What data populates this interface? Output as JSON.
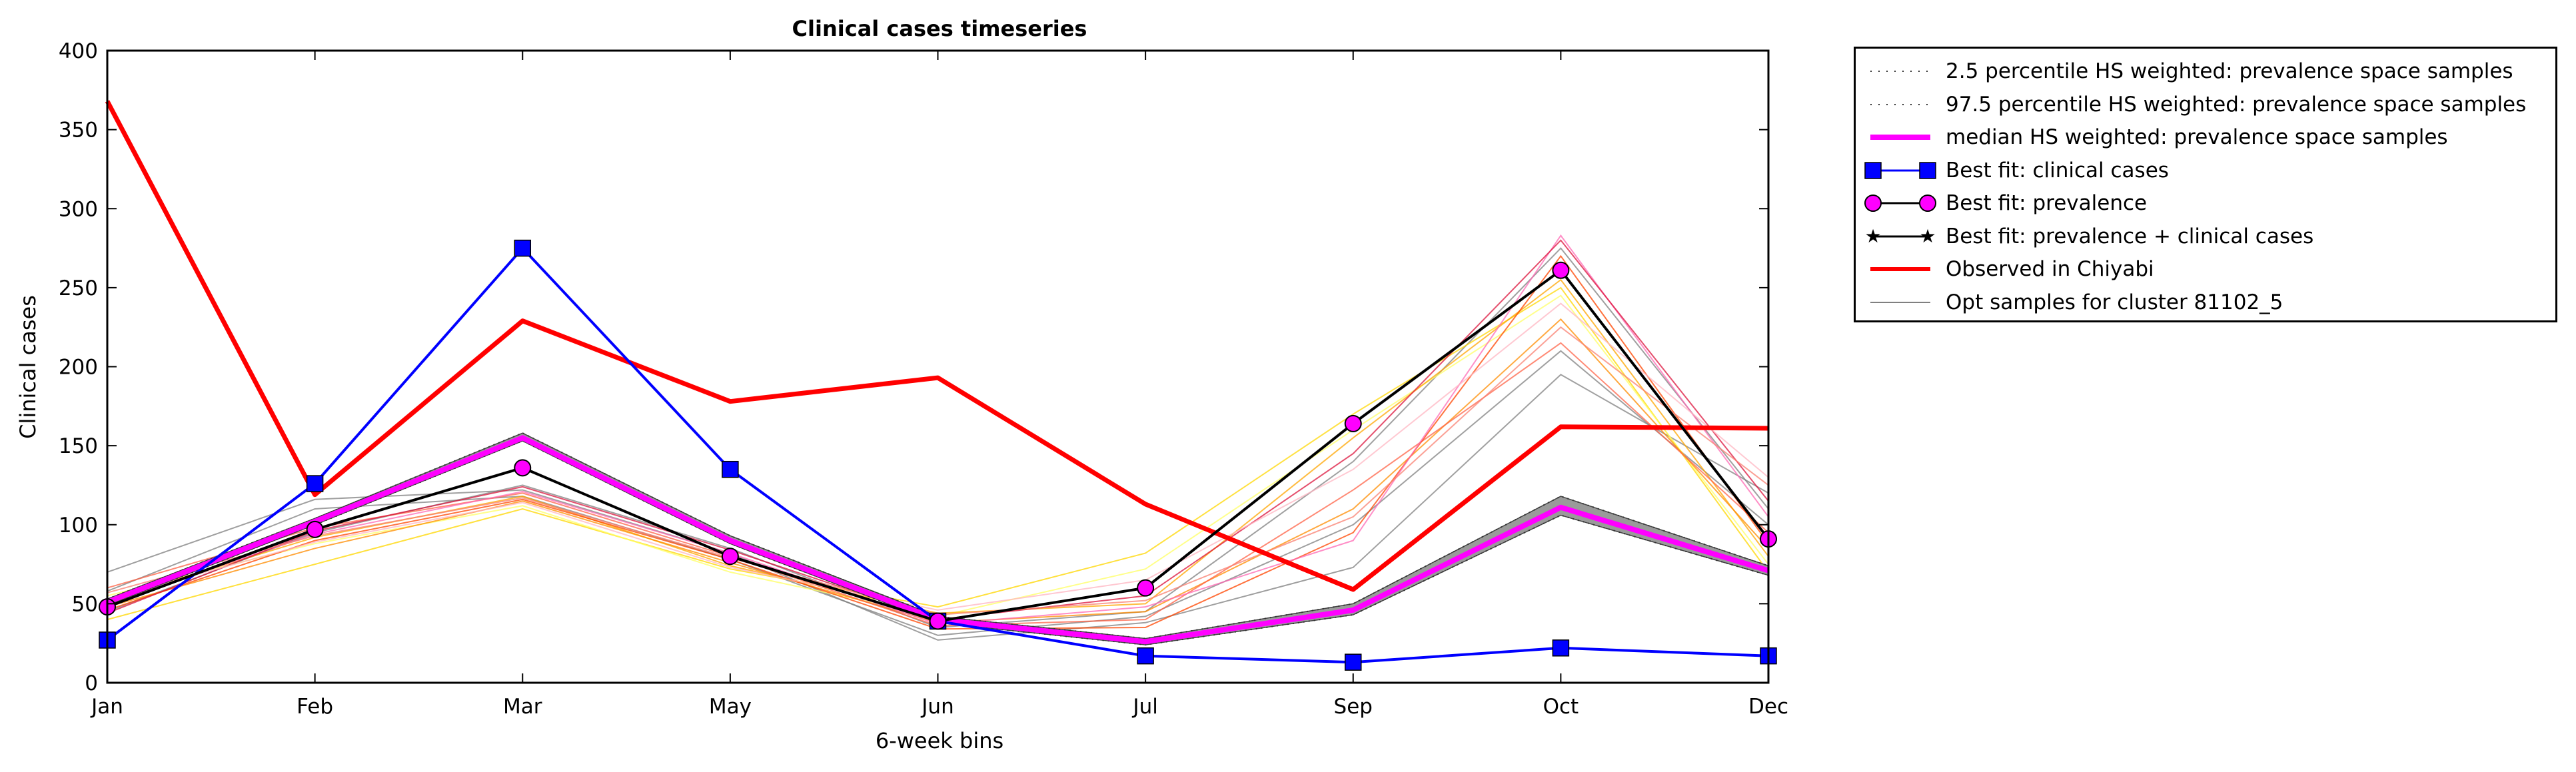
{
  "chart_data": {
    "type": "line",
    "title": "Clinical cases timeseries",
    "xlabel": "6-week bins",
    "ylabel": "Clinical cases",
    "categories": [
      "Jan",
      "Feb",
      "Mar",
      "May",
      "Jun",
      "Jul",
      "Sep",
      "Oct",
      "Dec"
    ],
    "ylim": [
      0,
      400
    ],
    "yticks": [
      0,
      50,
      100,
      150,
      200,
      250,
      300,
      350,
      400
    ],
    "grid": false,
    "legend_position": "outside-top-right",
    "series": [
      {
        "name": "2.5 percentile HS weighted: prevalence space samples",
        "style": "dotted",
        "color": "#555555",
        "values": [
          49,
          100,
          153,
          88,
          38,
          24,
          43,
          106,
          68
        ]
      },
      {
        "name": "97.5 percentile HS weighted: prevalence space samples",
        "style": "dotted",
        "color": "#555555",
        "values": [
          53,
          104,
          158,
          93,
          42,
          28,
          50,
          118,
          74
        ]
      },
      {
        "name": "median HS weighted: prevalence space samples",
        "style": "line",
        "color": "#ff00ff",
        "values": [
          51,
          102,
          155,
          90,
          40,
          26,
          46,
          111,
          71
        ]
      },
      {
        "name": "Best fit: clinical cases",
        "style": "line-square",
        "color": "#0000ff",
        "values": [
          27,
          126,
          275,
          135,
          39,
          17,
          13,
          22,
          17
        ]
      },
      {
        "name": "Best fit: prevalence",
        "style": "line-circle",
        "color": "#ff00ff",
        "values": [
          48,
          97,
          136,
          80,
          39,
          60,
          164,
          261,
          91
        ]
      },
      {
        "name": "Best fit: prevalence + clinical cases",
        "style": "line-star",
        "color": "#000000",
        "values": [
          48,
          97,
          136,
          80,
          39,
          60,
          164,
          261,
          91
        ]
      },
      {
        "name": "Observed in Chiyabi",
        "style": "thick-line",
        "color": "#ff0000",
        "values": [
          368,
          119,
          229,
          178,
          193,
          113,
          59,
          162,
          161
        ]
      },
      {
        "name": "Opt samples for cluster 81102_5",
        "style": "thin-line",
        "color": "#808080",
        "values": [
          70,
          116,
          122,
          82,
          27,
          38,
          73,
          195,
          120
        ]
      }
    ],
    "sample_lines": [
      {
        "color": "#808080",
        "values": [
          70,
          116,
          122,
          82,
          27,
          38,
          73,
          195,
          120
        ]
      },
      {
        "color": "#808080",
        "values": [
          58,
          110,
          118,
          78,
          30,
          42,
          100,
          210,
          100
        ]
      },
      {
        "color": "#808080",
        "values": [
          45,
          95,
          125,
          85,
          35,
          45,
          140,
          275,
          110
        ]
      },
      {
        "color": "#ffd700",
        "values": [
          40,
          75,
          110,
          72,
          48,
          82,
          170,
          250,
          70
        ]
      },
      {
        "color": "#ffff66",
        "values": [
          55,
          88,
          112,
          70,
          42,
          72,
          160,
          245,
          75
        ]
      },
      {
        "color": "#ffa500",
        "values": [
          52,
          92,
          118,
          74,
          44,
          50,
          155,
          255,
          80
        ]
      },
      {
        "color": "#ff8c00",
        "values": [
          48,
          85,
          115,
          76,
          38,
          45,
          110,
          230,
          85
        ]
      },
      {
        "color": "#ff6347",
        "values": [
          60,
          98,
          120,
          80,
          36,
          40,
          122,
          215,
          95
        ]
      },
      {
        "color": "#ff4500",
        "values": [
          46,
          90,
          116,
          78,
          34,
          35,
          95,
          270,
          88
        ]
      },
      {
        "color": "#ff69b4",
        "values": [
          50,
          94,
          121,
          82,
          37,
          48,
          90,
          283,
          105
        ]
      },
      {
        "color": "#dc143c",
        "values": [
          44,
          96,
          124,
          84,
          40,
          55,
          145,
          280,
          115
        ]
      },
      {
        "color": "#ffb6c1",
        "values": [
          53,
          89,
          114,
          73,
          46,
          65,
          135,
          240,
          130
        ]
      },
      {
        "color": "#fa8072",
        "values": [
          57,
          93,
          117,
          79,
          43,
          52,
          105,
          225,
          125
        ]
      }
    ]
  }
}
